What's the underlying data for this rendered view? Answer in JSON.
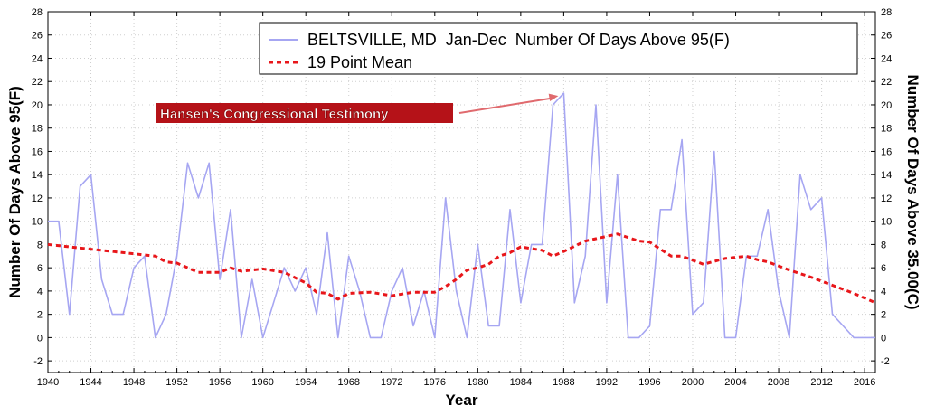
{
  "chart_data": {
    "type": "line",
    "title": "",
    "xlabel": "Year",
    "ylabel": "Number Of Days Above 95(F)",
    "ylabel_right": "Number Of Days Above 35.00(C)",
    "xlim": [
      1940,
      2017
    ],
    "ylim": [
      -3,
      28
    ],
    "x_ticks": [
      1940,
      1944,
      1948,
      1952,
      1956,
      1960,
      1964,
      1968,
      1972,
      1976,
      1980,
      1984,
      1988,
      1992,
      1996,
      2000,
      2004,
      2008,
      2012,
      2016
    ],
    "y_ticks": [
      -2,
      0,
      2,
      4,
      6,
      8,
      10,
      12,
      14,
      16,
      18,
      20,
      22,
      24,
      26,
      28
    ],
    "grid": true,
    "legend_position": "top-right",
    "series": [
      {
        "name": "BELTSVILLE, MD  Jan-Dec  Number Of Days Above 95(F)",
        "style": "solid",
        "color": "#a6a6f2",
        "x": [
          1940,
          1941,
          1942,
          1943,
          1944,
          1945,
          1946,
          1947,
          1948,
          1949,
          1950,
          1951,
          1952,
          1953,
          1954,
          1955,
          1956,
          1957,
          1958,
          1959,
          1960,
          1961,
          1962,
          1963,
          1964,
          1965,
          1966,
          1967,
          1968,
          1969,
          1970,
          1971,
          1972,
          1973,
          1974,
          1975,
          1976,
          1977,
          1978,
          1979,
          1980,
          1981,
          1982,
          1983,
          1984,
          1985,
          1986,
          1987,
          1988,
          1989,
          1990,
          1991,
          1992,
          1993,
          1994,
          1995,
          1996,
          1997,
          1998,
          1999,
          2000,
          2001,
          2002,
          2003,
          2004,
          2005,
          2006,
          2007,
          2008,
          2009,
          2010,
          2011,
          2012,
          2013,
          2014,
          2015,
          2016,
          2017
        ],
        "values": [
          10,
          10,
          2,
          13,
          14,
          5,
          2,
          2,
          6,
          7,
          0,
          2,
          7,
          15,
          12,
          15,
          5,
          11,
          0,
          5,
          0,
          3,
          6,
          4,
          6,
          2,
          9,
          0,
          7,
          4,
          0,
          0,
          4,
          6,
          1,
          4,
          0,
          12,
          4,
          0,
          8,
          1,
          1,
          11,
          3,
          8,
          8,
          20,
          21,
          3,
          7,
          20,
          3,
          14,
          0,
          0,
          1,
          11,
          11,
          17,
          2,
          3,
          16,
          0,
          0,
          7,
          7,
          11,
          4,
          0,
          14,
          11,
          12,
          2,
          1,
          0,
          0,
          0
        ]
      },
      {
        "name": "19 Point Mean",
        "style": "dashed",
        "color": "#e8161a",
        "x": [
          1940,
          1944,
          1948,
          1950,
          1951,
          1952,
          1954,
          1956,
          1957,
          1958,
          1960,
          1962,
          1964,
          1965,
          1966,
          1967,
          1968,
          1970,
          1972,
          1974,
          1976,
          1977,
          1978,
          1979,
          1980,
          1981,
          1982,
          1983,
          1984,
          1986,
          1987,
          1988,
          1990,
          1991,
          1993,
          1995,
          1996,
          1997,
          1998,
          1999,
          2001,
          2003,
          2005,
          2006,
          2007,
          2009,
          2011,
          2013,
          2015,
          2017
        ],
        "values": [
          8,
          7.6,
          7.2,
          7.0,
          6.5,
          6.4,
          5.6,
          5.6,
          6.0,
          5.7,
          5.9,
          5.6,
          4.7,
          3.9,
          3.8,
          3.3,
          3.8,
          3.9,
          3.6,
          3.9,
          3.9,
          4.4,
          5.0,
          5.8,
          6.0,
          6.3,
          7.0,
          7.3,
          7.8,
          7.5,
          7.0,
          7.4,
          8.3,
          8.5,
          8.9,
          8.3,
          8.2,
          7.6,
          7.0,
          7.0,
          6.3,
          6.8,
          7.0,
          6.7,
          6.5,
          5.8,
          5.2,
          4.5,
          3.8,
          3.0
        ]
      }
    ],
    "annotations": [
      {
        "text": "Hansen's Congressional Testimony",
        "x": 1988,
        "y": 21
      }
    ]
  }
}
